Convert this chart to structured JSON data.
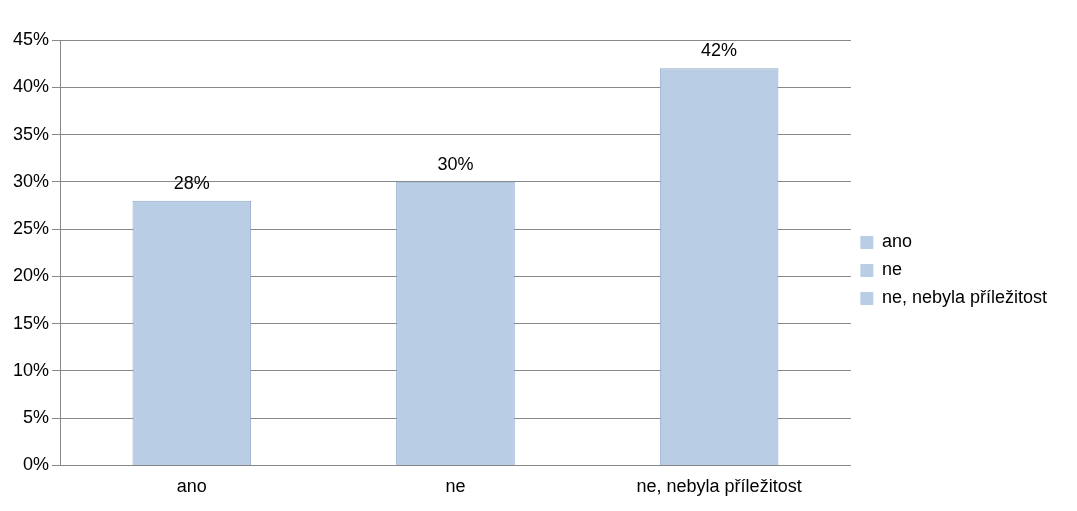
{
  "chart_data": {
    "type": "bar",
    "categories": [
      "ano",
      "ne",
      "ne, nebyla příležitost"
    ],
    "series": [
      {
        "name": "ano",
        "color": "#b9cde5",
        "values": [
          28,
          null,
          null
        ],
        "value_labels": [
          "28%",
          null,
          null
        ]
      },
      {
        "name": "ne",
        "color": "#b9cde5",
        "values": [
          null,
          30,
          null
        ],
        "value_labels": [
          null,
          "30%",
          null
        ]
      },
      {
        "name": "ne, nebyla příležitost",
        "color": "#b9cde5",
        "values": [
          null,
          null,
          42
        ],
        "value_labels": [
          null,
          null,
          "42%"
        ]
      }
    ],
    "ylim": [
      0,
      45
    ],
    "yticks": [
      {
        "value": 0,
        "label": "0%"
      },
      {
        "value": 5,
        "label": "5%"
      },
      {
        "value": 10,
        "label": "10%"
      },
      {
        "value": 15,
        "label": "15%"
      },
      {
        "value": 20,
        "label": "20%"
      },
      {
        "value": 25,
        "label": "25%"
      },
      {
        "value": 30,
        "label": "30%"
      },
      {
        "value": 35,
        "label": "35%"
      },
      {
        "value": 40,
        "label": "40%"
      },
      {
        "value": 45,
        "label": "45%"
      }
    ],
    "grid": "y",
    "legend": "right"
  }
}
